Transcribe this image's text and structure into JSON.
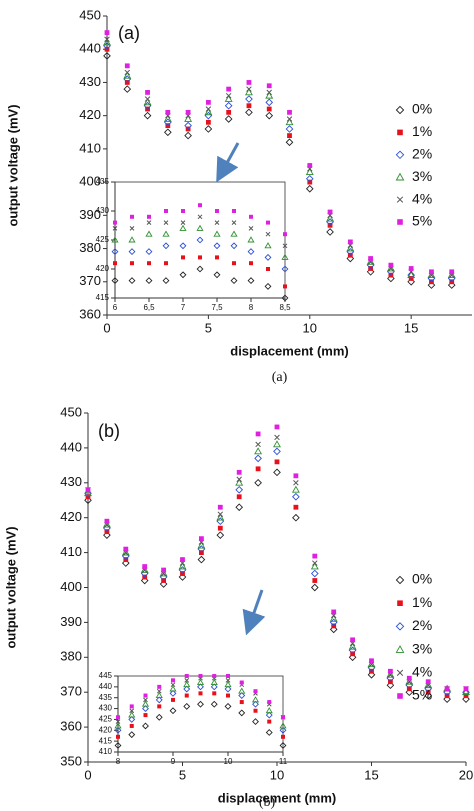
{
  "chart_data": [
    {
      "type": "scatter",
      "annotation": "(a)",
      "caption": "(a)",
      "xlabel": "displacement (mm)",
      "ylabel": "output voltage (mV)",
      "xlim": [
        0,
        18
      ],
      "ylim": [
        360,
        450
      ],
      "xticks": [
        0,
        5,
        10,
        15
      ],
      "yticks": [
        360,
        370,
        380,
        390,
        400,
        410,
        420,
        430,
        440,
        450
      ],
      "legend": "right",
      "x": [
        0,
        1,
        2,
        3,
        4,
        5,
        6,
        7,
        8,
        9,
        10,
        11,
        12,
        13,
        14,
        15,
        16,
        17
      ],
      "series": [
        {
          "name": "0%",
          "color": "#222222",
          "marker": "diamond-open",
          "values": [
            438,
            428,
            420,
            415,
            414,
            416,
            419,
            421,
            420,
            412,
            398,
            385,
            377,
            373,
            371,
            370,
            369,
            369
          ]
        },
        {
          "name": "1%",
          "color": "#e8101a",
          "marker": "square",
          "values": [
            440,
            430,
            422,
            417,
            416,
            418,
            421,
            423,
            422,
            414,
            400,
            387,
            378,
            374,
            372,
            371,
            370,
            370
          ]
        },
        {
          "name": "2%",
          "color": "#2a4fd8",
          "marker": "diamond-open",
          "values": [
            441,
            431,
            423,
            418,
            417,
            420,
            423,
            425,
            424,
            416,
            401,
            388,
            379,
            375,
            373,
            372,
            371,
            371
          ]
        },
        {
          "name": "3%",
          "color": "#2f8f2f",
          "marker": "triangle-open",
          "values": [
            442,
            432,
            424,
            419,
            419,
            421,
            425,
            427,
            426,
            418,
            403,
            389,
            380,
            376,
            374,
            372,
            372,
            372
          ]
        },
        {
          "name": "4%",
          "color": "#555555",
          "marker": "x",
          "values": [
            443,
            433,
            425,
            420,
            420,
            422,
            426,
            428,
            427,
            419,
            404,
            390,
            381,
            376,
            374,
            373,
            372,
            372
          ]
        },
        {
          "name": "5%",
          "color": "#e020e0",
          "marker": "square",
          "values": [
            445,
            435,
            427,
            421,
            421,
            424,
            428,
            430,
            429,
            421,
            405,
            391,
            382,
            377,
            375,
            374,
            373,
            373
          ]
        }
      ]
    },
    {
      "type": "scatter",
      "xlim": [
        6,
        8.5
      ],
      "ylim": [
        415,
        435
      ],
      "xticks": [
        6,
        {
          "value": 6.5,
          "label": "6,5"
        },
        7,
        {
          "value": 7.5,
          "label": "7,5"
        },
        8,
        {
          "value": 8.5,
          "label": "8,5"
        }
      ],
      "yticks": [
        415,
        420,
        425,
        430,
        435
      ],
      "x": [
        6,
        6.25,
        6.5,
        6.75,
        7,
        7.25,
        7.5,
        7.75,
        8,
        8.25,
        8.5
      ],
      "series": [
        {
          "color": "#222222",
          "marker": "diamond-open",
          "values": [
            418,
            418,
            418,
            418,
            419,
            420,
            419,
            418,
            418,
            417,
            415
          ]
        },
        {
          "color": "#e8101a",
          "marker": "square",
          "values": [
            421,
            421,
            421,
            421,
            422,
            422,
            422,
            421,
            421,
            420,
            417
          ]
        },
        {
          "color": "#2a4fd8",
          "marker": "diamond-open",
          "values": [
            423,
            423,
            423,
            424,
            424,
            425,
            424,
            424,
            423,
            422,
            420
          ]
        },
        {
          "color": "#2f8f2f",
          "marker": "triangle-open",
          "values": [
            425,
            425,
            426,
            426,
            427,
            427,
            426,
            426,
            425,
            424,
            422
          ]
        },
        {
          "color": "#555555",
          "marker": "x",
          "values": [
            427,
            427,
            428,
            428,
            428,
            429,
            428,
            428,
            427,
            426,
            424
          ]
        },
        {
          "color": "#e020e0",
          "marker": "square",
          "values": [
            428,
            429,
            429,
            430,
            430,
            431,
            430,
            430,
            429,
            428,
            426
          ]
        }
      ]
    },
    {
      "type": "scatter",
      "annotation": "(b)",
      "caption": "(b)",
      "xlabel": "displacement (mm)",
      "ylabel": "output voltage (mV)",
      "xlim": [
        0,
        20
      ],
      "ylim": [
        350,
        450
      ],
      "xticks": [
        0,
        5,
        10,
        15,
        20
      ],
      "yticks": [
        350,
        360,
        370,
        380,
        390,
        400,
        410,
        420,
        430,
        440,
        450
      ],
      "legend": "right",
      "x": [
        0,
        1,
        2,
        3,
        4,
        5,
        6,
        7,
        8,
        9,
        10,
        11,
        12,
        13,
        14,
        15,
        16,
        17,
        18,
        19,
        20
      ],
      "series": [
        {
          "name": "0%",
          "color": "#222222",
          "marker": "diamond-open",
          "values": [
            425,
            415,
            407,
            402,
            401,
            403,
            408,
            415,
            423,
            430,
            433,
            420,
            400,
            388,
            380,
            375,
            372,
            370,
            369,
            368,
            368
          ]
        },
        {
          "name": "1%",
          "color": "#e8101a",
          "marker": "square",
          "values": [
            426,
            416,
            408,
            403,
            402,
            404,
            410,
            417,
            426,
            434,
            436,
            423,
            402,
            389,
            381,
            376,
            373,
            371,
            370,
            369,
            369
          ]
        },
        {
          "name": "2%",
          "color": "#2a4fd8",
          "marker": "diamond-open",
          "values": [
            427,
            417,
            409,
            404,
            403,
            405,
            411,
            419,
            428,
            437,
            439,
            426,
            404,
            390,
            382,
            377,
            374,
            372,
            371,
            370,
            370
          ]
        },
        {
          "name": "3%",
          "color": "#2f8f2f",
          "marker": "triangle-open",
          "values": [
            427,
            418,
            410,
            405,
            404,
            406,
            412,
            420,
            430,
            439,
            441,
            428,
            406,
            391,
            383,
            378,
            375,
            373,
            372,
            371,
            370
          ]
        },
        {
          "name": "4%",
          "color": "#555555",
          "marker": "x",
          "values": [
            428,
            418,
            410,
            405,
            404,
            407,
            413,
            421,
            431,
            441,
            443,
            430,
            407,
            392,
            384,
            378,
            375,
            373,
            372,
            371,
            371
          ]
        },
        {
          "name": "5%",
          "color": "#e020e0",
          "marker": "square",
          "values": [
            428,
            419,
            411,
            406,
            405,
            408,
            414,
            423,
            433,
            444,
            446,
            432,
            409,
            393,
            385,
            379,
            376,
            374,
            373,
            371,
            371
          ]
        }
      ]
    },
    {
      "type": "scatter",
      "xlim": [
        8,
        11
      ],
      "ylim": [
        410,
        445
      ],
      "xticks": [
        8,
        9,
        10,
        11
      ],
      "yticks": [
        410,
        415,
        420,
        425,
        430,
        435,
        440,
        445
      ],
      "x": [
        8,
        8.25,
        8.5,
        8.75,
        9,
        9.25,
        9.5,
        9.75,
        10,
        10.25,
        10.5,
        10.75,
        11
      ],
      "series": [
        {
          "color": "#222222",
          "marker": "diamond-open",
          "values": [
            413,
            418,
            422,
            426,
            429,
            431,
            432,
            432,
            431,
            428,
            424,
            419,
            413
          ]
        },
        {
          "color": "#e8101a",
          "marker": "square",
          "values": [
            417,
            422,
            427,
            431,
            434,
            436,
            437,
            437,
            436,
            433,
            429,
            424,
            417
          ]
        },
        {
          "color": "#2a4fd8",
          "marker": "diamond-open",
          "values": [
            420,
            425,
            430,
            434,
            437,
            439,
            440,
            440,
            439,
            436,
            432,
            427,
            420
          ]
        },
        {
          "color": "#2f8f2f",
          "marker": "triangle-open",
          "values": [
            422,
            427,
            432,
            436,
            439,
            441,
            442,
            442,
            441,
            438,
            434,
            429,
            422
          ]
        },
        {
          "color": "#555555",
          "marker": "x",
          "values": [
            424,
            429,
            434,
            438,
            441,
            443,
            444,
            444,
            443,
            441,
            437,
            432,
            426
          ]
        },
        {
          "color": "#e020e0",
          "marker": "square",
          "values": [
            426,
            431,
            436,
            440,
            443,
            445,
            445,
            445,
            445,
            442,
            438,
            433,
            426
          ]
        }
      ]
    }
  ]
}
